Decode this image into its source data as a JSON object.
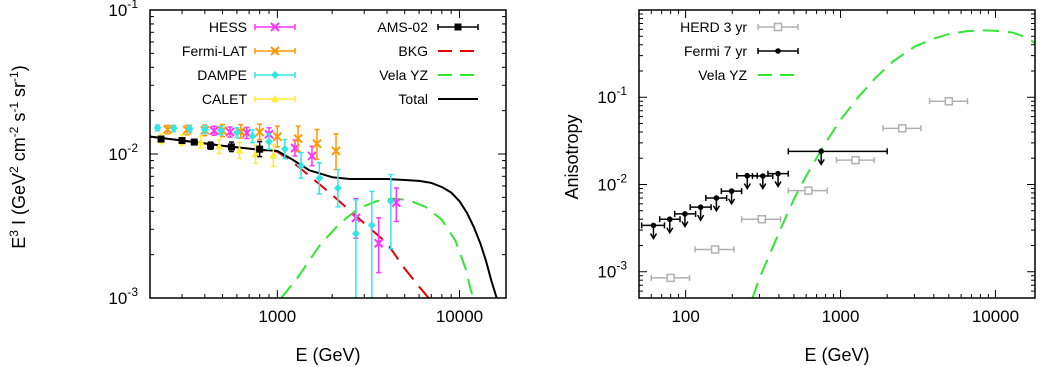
{
  "chart_data": [
    {
      "type": "scatter",
      "panel": "left",
      "xlabel": "E (GeV)",
      "ylabel": "E^3 I (GeV^2 cm^-2 s^-1 sr^-1)",
      "ylabel_parts": [
        "E",
        "3",
        " I (GeV",
        "2",
        " cm",
        "-2",
        " s",
        "-1",
        " sr",
        "-1",
        ")"
      ],
      "xscale": "log",
      "yscale": "log",
      "xlim": [
        200,
        18000
      ],
      "ylim": [
        0.001,
        0.1
      ],
      "xticks": [
        {
          "v": 1000,
          "label": "1000"
        },
        {
          "v": 10000,
          "label": "10000"
        }
      ],
      "yticks": [
        {
          "v": 0.001,
          "base": "10",
          "exp": "-3"
        },
        {
          "v": 0.01,
          "base": "10",
          "exp": "-2"
        },
        {
          "v": 0.1,
          "base": "10",
          "exp": "-1"
        }
      ],
      "legend_position": "top, two columns",
      "series": [
        {
          "name": "HESS",
          "color": "#ff33ff",
          "marker": "x",
          "points": [
            {
              "x": 450,
              "y": 0.0145,
              "ylo": 0.0135,
              "yhi": 0.0156
            },
            {
              "x": 550,
              "y": 0.0142,
              "ylo": 0.0131,
              "yhi": 0.0154
            },
            {
              "x": 680,
              "y": 0.014,
              "ylo": 0.0128,
              "yhi": 0.0153
            },
            {
              "x": 900,
              "y": 0.0137,
              "ylo": 0.0123,
              "yhi": 0.0152
            },
            {
              "x": 1250,
              "y": 0.011,
              "ylo": 0.0097,
              "yhi": 0.0125
            },
            {
              "x": 1550,
              "y": 0.0097,
              "ylo": 0.0083,
              "yhi": 0.0113
            },
            {
              "x": 2700,
              "y": 0.0036,
              "ylo": 0.0026,
              "yhi": 0.0049
            },
            {
              "x": 3600,
              "y": 0.0024,
              "ylo": 0.0015,
              "yhi": 0.0036
            },
            {
              "x": 4500,
              "y": 0.0046,
              "ylo": 0.0034,
              "yhi": 0.0058
            }
          ]
        },
        {
          "name": "Fermi-LAT",
          "color": "#ff9900",
          "marker": "x",
          "points": [
            {
              "x": 250,
              "y": 0.0148,
              "ylo": 0.0138,
              "yhi": 0.0158
            },
            {
              "x": 320,
              "y": 0.0147,
              "ylo": 0.0136,
              "yhi": 0.0158
            },
            {
              "x": 400,
              "y": 0.0146,
              "ylo": 0.0134,
              "yhi": 0.0159
            },
            {
              "x": 500,
              "y": 0.0145,
              "ylo": 0.0132,
              "yhi": 0.016
            },
            {
              "x": 630,
              "y": 0.0143,
              "ylo": 0.0129,
              "yhi": 0.016
            },
            {
              "x": 800,
              "y": 0.0142,
              "ylo": 0.0126,
              "yhi": 0.0161
            },
            {
              "x": 1000,
              "y": 0.0132,
              "ylo": 0.0112,
              "yhi": 0.0156
            },
            {
              "x": 1300,
              "y": 0.0128,
              "ylo": 0.0104,
              "yhi": 0.0156
            },
            {
              "x": 1650,
              "y": 0.0118,
              "ylo": 0.0092,
              "yhi": 0.0148
            },
            {
              "x": 2100,
              "y": 0.0105,
              "ylo": 0.0078,
              "yhi": 0.0138
            }
          ]
        },
        {
          "name": "DAMPE",
          "color": "#33e6e6",
          "marker": "diamond",
          "points": [
            {
              "x": 220,
              "y": 0.0152,
              "ylo": 0.0145,
              "yhi": 0.0159
            },
            {
              "x": 270,
              "y": 0.0151,
              "ylo": 0.0143,
              "yhi": 0.0158
            },
            {
              "x": 330,
              "y": 0.015,
              "ylo": 0.0142,
              "yhi": 0.0158
            },
            {
              "x": 400,
              "y": 0.0148,
              "ylo": 0.0139,
              "yhi": 0.0157
            },
            {
              "x": 490,
              "y": 0.0146,
              "ylo": 0.0136,
              "yhi": 0.0156
            },
            {
              "x": 600,
              "y": 0.0141,
              "ylo": 0.013,
              "yhi": 0.0152
            },
            {
              "x": 730,
              "y": 0.0133,
              "ylo": 0.012,
              "yhi": 0.0147
            },
            {
              "x": 900,
              "y": 0.0122,
              "ylo": 0.0108,
              "yhi": 0.0138
            },
            {
              "x": 1100,
              "y": 0.0108,
              "ylo": 0.0093,
              "yhi": 0.0126
            },
            {
              "x": 1350,
              "y": 0.0083,
              "ylo": 0.0068,
              "yhi": 0.0102
            },
            {
              "x": 1700,
              "y": 0.0068,
              "ylo": 0.0053,
              "yhi": 0.0087
            },
            {
              "x": 2150,
              "y": 0.0058,
              "ylo": 0.0043,
              "yhi": 0.0078
            },
            {
              "x": 2700,
              "y": 0.0028,
              "ylo": 0.001,
              "yhi": 0.0048
            },
            {
              "x": 3300,
              "y": 0.0032,
              "ylo": 0.001,
              "yhi": 0.0055
            },
            {
              "x": 4200,
              "y": 0.0047,
              "ylo": 0.0022,
              "yhi": 0.0072
            }
          ]
        },
        {
          "name": "CALET",
          "color": "#ffee33",
          "marker": "triangle",
          "points": [
            {
              "x": 230,
              "y": 0.0128,
              "ylo": 0.0118,
              "yhi": 0.0138
            },
            {
              "x": 300,
              "y": 0.0125,
              "ylo": 0.0115,
              "yhi": 0.0136
            },
            {
              "x": 380,
              "y": 0.0121,
              "ylo": 0.011,
              "yhi": 0.0133
            },
            {
              "x": 480,
              "y": 0.0113,
              "ylo": 0.0101,
              "yhi": 0.0126
            },
            {
              "x": 620,
              "y": 0.0106,
              "ylo": 0.0093,
              "yhi": 0.012
            },
            {
              "x": 760,
              "y": 0.01,
              "ylo": 0.0086,
              "yhi": 0.0115
            },
            {
              "x": 950,
              "y": 0.0098,
              "ylo": 0.0082,
              "yhi": 0.0116
            }
          ]
        },
        {
          "name": "AMS-02",
          "color": "#000000",
          "marker": "square",
          "points": [
            {
              "x": 230,
              "y": 0.0127,
              "ylo": 0.0123,
              "yhi": 0.0131
            },
            {
              "x": 300,
              "y": 0.0124,
              "ylo": 0.012,
              "yhi": 0.0128
            },
            {
              "x": 350,
              "y": 0.0121,
              "ylo": 0.0116,
              "yhi": 0.0126
            },
            {
              "x": 430,
              "y": 0.0114,
              "ylo": 0.0108,
              "yhi": 0.0121
            },
            {
              "x": 560,
              "y": 0.0112,
              "ylo": 0.0104,
              "yhi": 0.0121
            },
            {
              "x": 800,
              "y": 0.0108,
              "ylo": 0.0096,
              "yhi": 0.0122
            }
          ]
        }
      ],
      "curves": [
        {
          "name": "BKG",
          "color": "#e60000",
          "style": "long-dash",
          "points": [
            [
              200,
              0.0132
            ],
            [
              300,
              0.0124
            ],
            [
              500,
              0.0114
            ],
            [
              800,
              0.0107
            ],
            [
              1000,
              0.0104
            ],
            [
              1300,
              0.0082
            ],
            [
              2000,
              0.0052
            ],
            [
              3000,
              0.0033
            ],
            [
              4000,
              0.0024
            ],
            [
              5000,
              0.0016
            ],
            [
              6000,
              0.0012
            ],
            [
              7000,
              0.00095
            ]
          ]
        },
        {
          "name": "Vela YZ",
          "color": "#33e633",
          "style": "long-dash",
          "points": [
            [
              1050,
              0.001
            ],
            [
              1300,
              0.0014
            ],
            [
              1700,
              0.0023
            ],
            [
              2200,
              0.0033
            ],
            [
              2800,
              0.0042
            ],
            [
              3500,
              0.0047
            ],
            [
              4300,
              0.0049
            ],
            [
              5200,
              0.0048
            ],
            [
              6500,
              0.0043
            ],
            [
              8000,
              0.0035
            ],
            [
              9500,
              0.0025
            ],
            [
              10800,
              0.0016
            ],
            [
              11500,
              0.00115
            ],
            [
              11900,
              0.001
            ]
          ]
        },
        {
          "name": "Total",
          "color": "#000000",
          "style": "solid",
          "points": [
            [
              200,
              0.0132
            ],
            [
              300,
              0.0124
            ],
            [
              500,
              0.0114
            ],
            [
              800,
              0.0107
            ],
            [
              1000,
              0.0105
            ],
            [
              1200,
              0.0092
            ],
            [
              1500,
              0.0077
            ],
            [
              2000,
              0.0069
            ],
            [
              2500,
              0.0067
            ],
            [
              3000,
              0.0067
            ],
            [
              4000,
              0.0067
            ],
            [
              5000,
              0.0066
            ],
            [
              6000,
              0.0065
            ],
            [
              7000,
              0.0063
            ],
            [
              8000,
              0.0059
            ],
            [
              9000,
              0.0054
            ],
            [
              10000,
              0.0047
            ],
            [
              11000,
              0.0039
            ],
            [
              12000,
              0.0031
            ],
            [
              13000,
              0.0024
            ],
            [
              14000,
              0.0018
            ],
            [
              15000,
              0.0013
            ],
            [
              16000,
              0.001
            ]
          ]
        }
      ]
    },
    {
      "type": "scatter",
      "panel": "right",
      "xlabel": "E (GeV)",
      "ylabel": "Anisotropy",
      "xscale": "log",
      "yscale": "log",
      "xlim": [
        50,
        18000
      ],
      "ylim": [
        0.0005,
        1
      ],
      "xticks": [
        {
          "v": 100,
          "label": "100"
        },
        {
          "v": 1000,
          "label": "1000"
        },
        {
          "v": 10000,
          "label": "10000"
        }
      ],
      "yticks": [
        {
          "v": 0.001,
          "base": "10",
          "exp": "-3"
        },
        {
          "v": 0.01,
          "base": "10",
          "exp": "-2"
        },
        {
          "v": 0.1,
          "base": "10",
          "exp": "-1"
        }
      ],
      "legend_position": "top-left",
      "series": [
        {
          "name": "HERD 3 yr",
          "color": "#b0b0b0",
          "marker": "open-square",
          "points": [
            {
              "x": 80,
              "y": 0.00085,
              "xlo": 60,
              "xhi": 106
            },
            {
              "x": 155,
              "y": 0.0018,
              "xlo": 115,
              "xhi": 205
            },
            {
              "x": 310,
              "y": 0.004,
              "xlo": 230,
              "xhi": 410
            },
            {
              "x": 620,
              "y": 0.0085,
              "xlo": 460,
              "xhi": 820
            },
            {
              "x": 1250,
              "y": 0.019,
              "xlo": 940,
              "xhi": 1650
            },
            {
              "x": 2500,
              "y": 0.044,
              "xlo": 1880,
              "xhi": 3300
            },
            {
              "x": 5000,
              "y": 0.09,
              "xlo": 3750,
              "xhi": 6600
            }
          ]
        },
        {
          "name": "Fermi 7 yr",
          "color": "#000000",
          "marker": "dot",
          "points": [
            {
              "x": 62,
              "y": 0.0034,
              "xlo": 52,
              "xhi": 73,
              "ul": 0.0024
            },
            {
              "x": 79,
              "y": 0.004,
              "xlo": 68,
              "xhi": 92,
              "ul": 0.0028
            },
            {
              "x": 99,
              "y": 0.0046,
              "xlo": 85,
              "xhi": 116,
              "ul": 0.0033
            },
            {
              "x": 125,
              "y": 0.0055,
              "xlo": 107,
              "xhi": 146,
              "ul": 0.0039
            },
            {
              "x": 158,
              "y": 0.007,
              "xlo": 135,
              "xhi": 184,
              "ul": 0.005
            },
            {
              "x": 198,
              "y": 0.0084,
              "xlo": 170,
              "xhi": 230,
              "ul": 0.006
            },
            {
              "x": 250,
              "y": 0.0126,
              "xlo": 214,
              "xhi": 290,
              "ul": 0.009
            },
            {
              "x": 315,
              "y": 0.0125,
              "xlo": 270,
              "xhi": 365,
              "ul": 0.009
            },
            {
              "x": 395,
              "y": 0.0133,
              "xlo": 340,
              "xhi": 460,
              "ul": 0.0095
            },
            {
              "x": 750,
              "y": 0.024,
              "xlo": 460,
              "xhi": 2000,
              "ul": 0.017
            }
          ]
        }
      ],
      "curves": [
        {
          "name": "Vela YZ",
          "color": "#33e633",
          "style": "long-dash",
          "points": [
            [
              270,
              0.0005
            ],
            [
              300,
              0.00085
            ],
            [
              350,
              0.0016
            ],
            [
              400,
              0.0028
            ],
            [
              500,
              0.0068
            ],
            [
              600,
              0.0125
            ],
            [
              700,
              0.02
            ],
            [
              800,
              0.03
            ],
            [
              1000,
              0.055
            ],
            [
              1300,
              0.1
            ],
            [
              1700,
              0.17
            ],
            [
              2200,
              0.26
            ],
            [
              3000,
              0.38
            ],
            [
              4000,
              0.47
            ],
            [
              5000,
              0.53
            ],
            [
              6500,
              0.57
            ],
            [
              8000,
              0.585
            ],
            [
              9500,
              0.58
            ],
            [
              11000,
              0.57
            ],
            [
              13000,
              0.55
            ],
            [
              15500,
              0.49
            ],
            [
              18000,
              0.42
            ]
          ]
        }
      ]
    }
  ]
}
